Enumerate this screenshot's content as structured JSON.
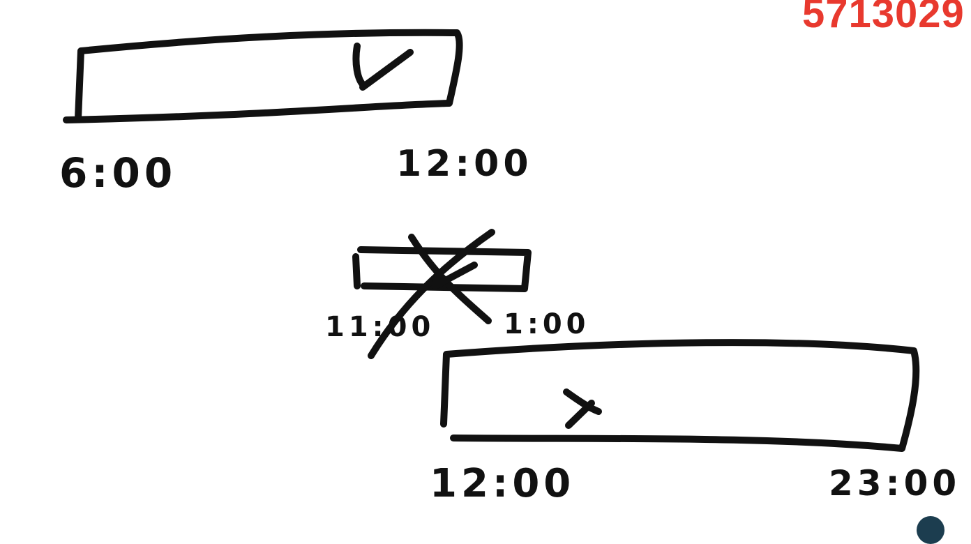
{
  "watermark": {
    "text": "5713029",
    "color": "#e8392e"
  },
  "diagram": {
    "ink_color": "#111111",
    "background": "#ffffff",
    "intervals": [
      {
        "start_label": "6:00",
        "end_label": "12:00",
        "mark": "check"
      },
      {
        "start_label": "11:00",
        "end_label": "1:00",
        "mark": "crossed-out"
      },
      {
        "start_label": "12:00",
        "end_label": "23:00",
        "mark": "x"
      }
    ]
  }
}
